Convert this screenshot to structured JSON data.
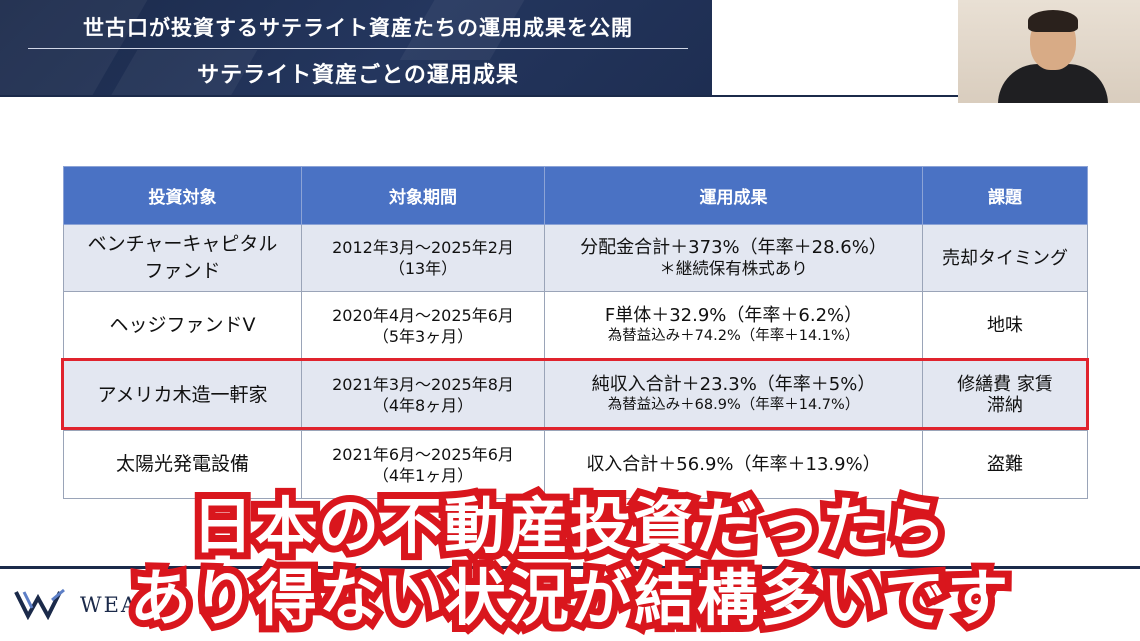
{
  "header": {
    "title": "世古口が投資するサテライト資産たちの運用成果を公開",
    "subtitle": "サテライト資産ごとの運用成果"
  },
  "table": {
    "headers": [
      "投資対象",
      "対象期間",
      "運用成果",
      "課題"
    ],
    "rows": [
      {
        "name": "ベンチャーキャピタル ファンド",
        "period": "2012年3月～2025年2月",
        "duration": "（13年）",
        "result_main": "分配金合計＋373%（年率＋28.6%）",
        "result_sub": "＊継続保有株式あり",
        "issue": "売却タイミング"
      },
      {
        "name": "ヘッジファンドV",
        "period": "2020年4月～2025年6月",
        "duration": "（5年3ヶ月）",
        "result_main": "F単体＋32.9%（年率＋6.2%）",
        "result_sub": "為替益込み＋74.2%（年率＋14.1%）",
        "issue": "地味"
      },
      {
        "name": "アメリカ木造一軒家",
        "period": "2021年3月～2025年8月",
        "duration": "（4年8ヶ月）",
        "result_main": "純収入合計＋23.3%（年率＋5%）",
        "result_sub": "為替益込み＋68.9%（年率＋14.7%）",
        "issue": "修繕費 家賃滞納"
      },
      {
        "name": "太陽光発電設備",
        "period": "2021年6月～2025年6月",
        "duration": "（4年1ヶ月）",
        "result_main": "収入合計＋56.9%（年率＋13.9%）",
        "result_sub": "",
        "issue": "盗難"
      }
    ]
  },
  "footer": {
    "logo_text": "WEALT"
  },
  "subtitles": {
    "line1": "日本の不動産投資だったら",
    "line2": "あり得ない状況が結構多いです"
  },
  "colors": {
    "banner": "#1b2a4a",
    "table_header": "#4a72c4",
    "highlight": "#e0232d",
    "subtitle_stroke": "#d9161d"
  }
}
